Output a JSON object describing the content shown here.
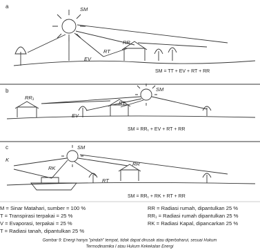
{
  "panels": [
    {
      "label": "a",
      "texts": [
        "SM",
        "EV",
        "RT",
        "RR"
      ],
      "equation": "SM = TT + EV + RT + RR"
    },
    {
      "label": "b",
      "texts": [
        "SM",
        "RR₁",
        "EV",
        "RT"
      ],
      "equation": "SM = RR₁ + EV + RT + RR"
    },
    {
      "label": "c",
      "texts": [
        "K",
        "SM",
        "RK",
        "RT",
        "RR"
      ],
      "equation": "SM = RR₁ + RK + RT + RR"
    }
  ],
  "legend": {
    "left": [
      "M  = Sinar Matahari, sumber = 100 %",
      "T  = Transpirasi terpakai = 25 %",
      "V  = Evaporasi, terpakai = 25 %",
      "T  = Radiasi tanah, dipantulkan 25 %"
    ],
    "right": [
      "RR  = Radiasi rumah, dipantulkan 25 %",
      "RR₁ = Radiasi rumah dipantulkan 25 %",
      "RK  = Radiasi Kapal, dipancarkan 25 %"
    ]
  },
  "caption": [
    "Gambar 9: Energi hanya \"pindah\" tempat, tidak dapat dirusak atau diperbaharui, sesuai Hukum",
    "Termodinamika I atau Hukum Kekekalan Energi"
  ]
}
